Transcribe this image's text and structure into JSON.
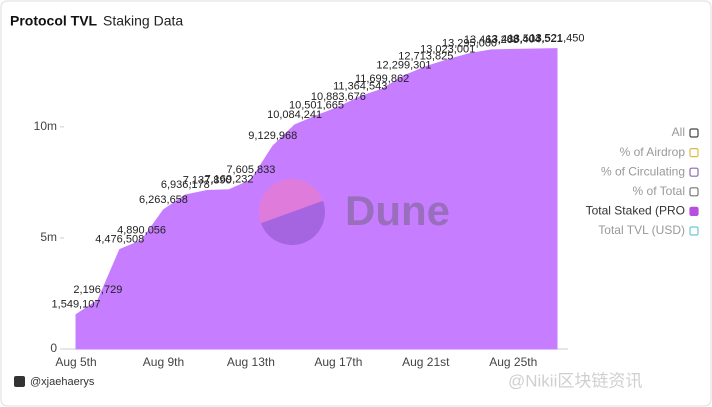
{
  "chart_data": {
    "type": "area",
    "title": "Protocol TVL",
    "subtitle": "Staking Data",
    "categories": [
      "Aug 5th",
      null,
      null,
      null,
      "Aug 9th",
      null,
      null,
      null,
      "Aug 13th",
      null,
      null,
      null,
      "Aug 17th",
      null,
      null,
      null,
      "Aug 21st",
      null,
      null,
      null,
      "Aug 25th",
      null,
      null
    ],
    "values": [
      1549107,
      2196729,
      4476508,
      4890056,
      6263658,
      6936178,
      7137890,
      7169232,
      7605833,
      9129968,
      10084241,
      10501665,
      10883676,
      11364543,
      11699862,
      12299301,
      12713825,
      13023001,
      13295000,
      13463208,
      13488404,
      13503521,
      13521450
    ],
    "value_labels": [
      "1,549,107",
      "2,196,729",
      "4,476,508",
      "4,890,056",
      "6,263,658",
      "6,936,178",
      "7,137,890",
      "7,169,232",
      "7,605,833",
      "9,129,968",
      "10,084,241",
      "10,501,665",
      "10,883,676",
      "11,364,543",
      "11,699,862",
      "12,299,301",
      "12,713,825",
      "13,023,001",
      "13,295,000",
      "13,463,208",
      "13,488,404",
      "13,503,521",
      "13,521,450"
    ],
    "color": "#c77dff",
    "ylim": [
      0,
      14000000
    ],
    "yticks": [
      0,
      {
        "value": 5000000,
        "label": "5m"
      },
      {
        "value": 10000000,
        "label": "10m"
      }
    ],
    "legend_position": "right",
    "legend": [
      {
        "name": "All",
        "color": "#444444",
        "active": false
      },
      {
        "name": "% of Airdrop",
        "color": "#e0b84a",
        "active": false
      },
      {
        "name": "% of Circulating",
        "color": "#8a6bb0",
        "active": false
      },
      {
        "name": "% of Total",
        "color": "#777777",
        "active": false
      },
      {
        "name": "Total Staked (PRO",
        "color": "#b84ee0",
        "active": true
      },
      {
        "name": "Total TVL (USD)",
        "color": "#6cc7d0",
        "active": false
      }
    ],
    "logo_text": "Dune",
    "author": "@xjaehaerys",
    "watermark": "@Nikii区块链资讯"
  }
}
